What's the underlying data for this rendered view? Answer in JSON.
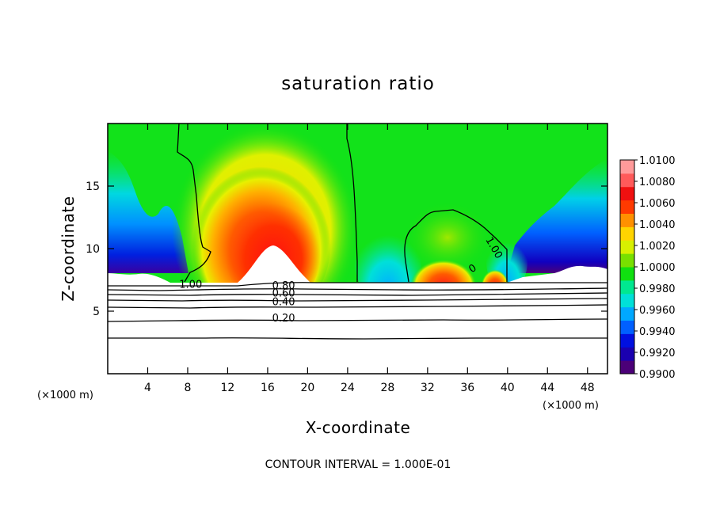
{
  "chart_data": {
    "type": "heatmap",
    "title": "saturation ratio",
    "xlabel": "X-coordinate",
    "ylabel": "Z-coordinate",
    "x_unit": "(×1000 m)",
    "y_unit": "(×1000 m)",
    "xlim": [
      0,
      50
    ],
    "ylim": [
      0,
      20
    ],
    "x_ticks": [
      4,
      8,
      12,
      16,
      20,
      24,
      28,
      32,
      36,
      40,
      44,
      48
    ],
    "y_ticks": [
      5,
      10,
      15
    ],
    "grid": false,
    "colorbar": {
      "min": 0.99,
      "max": 1.01,
      "labels": [
        "1.0100",
        "1.0080",
        "1.0060",
        "1.0040",
        "1.0020",
        "1.0000",
        "0.9980",
        "0.9960",
        "0.9940",
        "0.9920",
        "0.9900"
      ],
      "colors": [
        "#4b0078",
        "#1a00b0",
        "#0010e0",
        "#0060ff",
        "#00a8ff",
        "#00e0d8",
        "#00e890",
        "#10e010",
        "#78e000",
        "#d8f000",
        "#ffd400",
        "#ff9000",
        "#ff3a00",
        "#f01010",
        "#ff5a5a",
        "#ff9a9a"
      ]
    },
    "contour_labels": [
      {
        "text": "1.00",
        "x": 8.3,
        "z": 7.0
      },
      {
        "text": "0.80",
        "x": 17.6,
        "z": 6.9
      },
      {
        "text": "0.60",
        "x": 17.6,
        "z": 6.3
      },
      {
        "text": "0.40",
        "x": 17.6,
        "z": 5.6
      },
      {
        "text": "0.20",
        "x": 17.6,
        "z": 4.3
      },
      {
        "text": "1.00",
        "x": 38.5,
        "z": 10.0
      },
      {
        "text": "0",
        "x": 36.6,
        "z": 8.3
      }
    ],
    "contour_interval": "CONTOUR INTERVAL = 1.000E-01"
  }
}
